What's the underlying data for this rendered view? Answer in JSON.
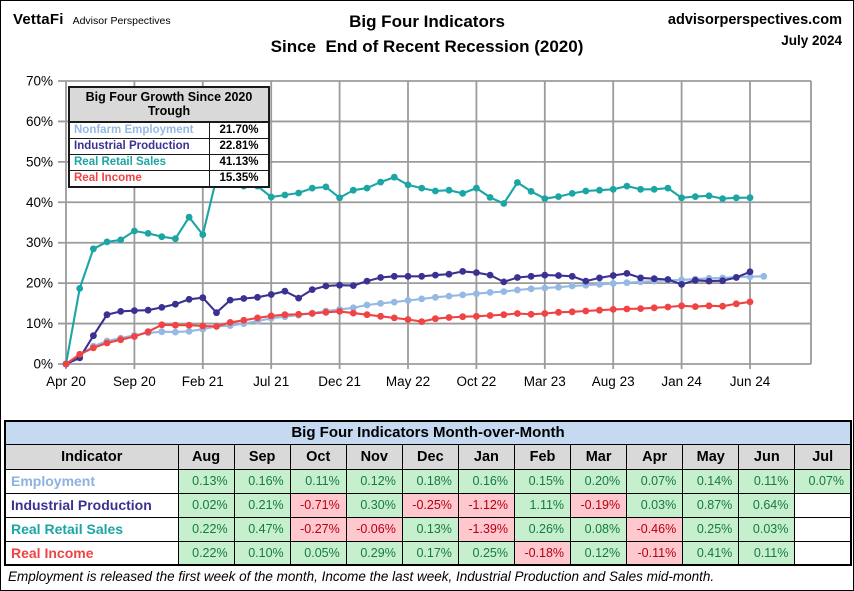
{
  "header": {
    "logo": "VettaFi",
    "logo_sub": "Advisor Perspectives",
    "title_line1": "Big Four Indicators",
    "title_line2": "Since  End of Recent Recession (2020)",
    "site": "advisorperspectives.com",
    "date": "July 2024"
  },
  "legend": {
    "title": "Big Four Growth Since 2020 Trough",
    "rows": [
      {
        "label": "Nonfarm Employment",
        "value": "21.70%",
        "color": "#95b9e3"
      },
      {
        "label": "Industrial Production",
        "value": "22.81%",
        "color": "#3b3191"
      },
      {
        "label": "Real Retail Sales",
        "value": "41.13%",
        "color": "#1ba5a5"
      },
      {
        "label": "Real Income",
        "value": "15.35%",
        "color": "#f04343"
      }
    ]
  },
  "chart_data": {
    "type": "line",
    "title": "Big Four Indicators Since End of Recent Recession (2020)",
    "x_start": "Apr 2020",
    "x_tick_labels": [
      "Apr 20",
      "Sep 20",
      "Feb 21",
      "Jul 21",
      "Dec 21",
      "May 22",
      "Oct 22",
      "Mar 23",
      "Aug 23",
      "Jan 24",
      "Jun 24"
    ],
    "x_tick_indices": [
      0,
      5,
      10,
      15,
      20,
      25,
      30,
      35,
      40,
      45,
      50
    ],
    "y_ticks": [
      "0%",
      "10%",
      "20%",
      "30%",
      "40%",
      "50%",
      "60%",
      "70%"
    ],
    "ylim": [
      0,
      70
    ],
    "grid": true,
    "legend_position": "top-left",
    "gridline_color": "#9b9b9b",
    "series": [
      {
        "name": "Nonfarm Employment",
        "color": "#95b9e3",
        "final": 21.7,
        "values": [
          0,
          2.2,
          4.4,
          5.7,
          6.4,
          7.1,
          7.7,
          8.0,
          7.9,
          8.1,
          8.6,
          9.3,
          9.5,
          10.0,
          10.6,
          11.3,
          11.7,
          12.1,
          12.6,
          13.1,
          13.5,
          13.9,
          14.6,
          15.0,
          15.3,
          15.7,
          16.1,
          16.5,
          16.8,
          17.1,
          17.4,
          17.7,
          17.9,
          18.3,
          18.6,
          18.8,
          19.0,
          19.3,
          19.5,
          19.7,
          19.9,
          20.1,
          20.3,
          20.5,
          20.7,
          20.8,
          21.0,
          21.2,
          21.3,
          21.5,
          21.6,
          21.7
        ]
      },
      {
        "name": "Industrial Production",
        "color": "#3b3191",
        "final": 22.81,
        "values": [
          0,
          1.5,
          7.0,
          12.2,
          13.0,
          13.2,
          13.3,
          14.0,
          14.8,
          16.0,
          16.4,
          12.7,
          15.8,
          16.2,
          16.5,
          17.2,
          18.0,
          16.3,
          18.4,
          19.3,
          19.5,
          19.4,
          20.5,
          21.4,
          21.7,
          21.7,
          21.7,
          22.0,
          22.2,
          22.9,
          22.6,
          22.0,
          20.3,
          21.4,
          21.7,
          22.0,
          21.9,
          21.7,
          20.5,
          21.3,
          21.9,
          22.4,
          21.3,
          21.1,
          20.9,
          19.7,
          20.7,
          20.5,
          20.6,
          21.4,
          22.81
        ]
      },
      {
        "name": "Real Retail Sales",
        "color": "#1ba5a5",
        "final": 41.13,
        "values": [
          0,
          18.7,
          28.5,
          30.2,
          30.7,
          32.9,
          32.3,
          31.5,
          31.0,
          36.3,
          32.0,
          46.0,
          46.4,
          44.0,
          44.0,
          41.3,
          41.8,
          42.3,
          43.5,
          43.8,
          41.1,
          43.0,
          43.5,
          45.0,
          46.2,
          44.3,
          43.5,
          42.8,
          43.0,
          42.2,
          43.5,
          41.2,
          39.7,
          44.9,
          42.7,
          40.9,
          41.4,
          42.2,
          42.8,
          43.0,
          43.2,
          44.0,
          43.2,
          43.2,
          43.5,
          41.1,
          41.4,
          41.6,
          40.9,
          41.1,
          41.13
        ]
      },
      {
        "name": "Real Income",
        "color": "#f04343",
        "final": 15.35,
        "values": [
          0,
          2.4,
          4.0,
          5.2,
          6.0,
          6.8,
          8.0,
          9.7,
          9.6,
          9.6,
          9.4,
          9.3,
          10.3,
          10.8,
          11.4,
          11.9,
          12.2,
          12.3,
          12.5,
          12.8,
          13.0,
          12.6,
          12.2,
          11.8,
          11.4,
          11.0,
          10.5,
          11.2,
          11.5,
          11.7,
          11.8,
          12.0,
          12.2,
          12.5,
          12.3,
          12.5,
          12.8,
          12.9,
          13.1,
          13.3,
          13.5,
          13.6,
          13.7,
          13.9,
          14.1,
          14.4,
          14.2,
          14.4,
          14.3,
          14.9,
          15.35
        ]
      }
    ]
  },
  "table": {
    "title": "Big Four Indicators Month-over-Month",
    "columns": [
      "Indicator",
      "Aug",
      "Sep",
      "Oct",
      "Nov",
      "Dec",
      "Jan",
      "Feb",
      "Mar",
      "Apr",
      "May",
      "Jun",
      "Jul"
    ],
    "rows": [
      {
        "label": "Employment",
        "color": "#8cb2e0",
        "values": [
          "0.13%",
          "0.16%",
          "0.11%",
          "0.12%",
          "0.18%",
          "0.16%",
          "0.15%",
          "0.20%",
          "0.07%",
          "0.14%",
          "0.11%",
          "0.07%"
        ]
      },
      {
        "label": "Industrial Production",
        "color": "#3b3191",
        "values": [
          "0.02%",
          "0.21%",
          "-0.71%",
          "0.30%",
          "-0.25%",
          "-1.12%",
          "1.11%",
          "-0.19%",
          "0.03%",
          "0.87%",
          "0.64%",
          ""
        ]
      },
      {
        "label": "Real Retail Sales",
        "color": "#1ba5a5",
        "values": [
          "0.22%",
          "0.47%",
          "-0.27%",
          "-0.06%",
          "0.13%",
          "-1.39%",
          "0.26%",
          "0.08%",
          "-0.46%",
          "0.25%",
          "0.03%",
          ""
        ]
      },
      {
        "label": "Real Income",
        "color": "#f04343",
        "values": [
          "0.22%",
          "0.10%",
          "0.05%",
          "0.29%",
          "0.17%",
          "0.25%",
          "-0.18%",
          "0.12%",
          "-0.11%",
          "0.41%",
          "0.11%",
          ""
        ]
      }
    ],
    "positive_bg": "#c6efce",
    "positive_text": "#157a3f",
    "negative_bg": "#ffc7ce",
    "negative_text": "#b50011"
  },
  "footnote": "Employment is released the first week of the month, Income the last week, Industrial Production and Sales mid-month."
}
